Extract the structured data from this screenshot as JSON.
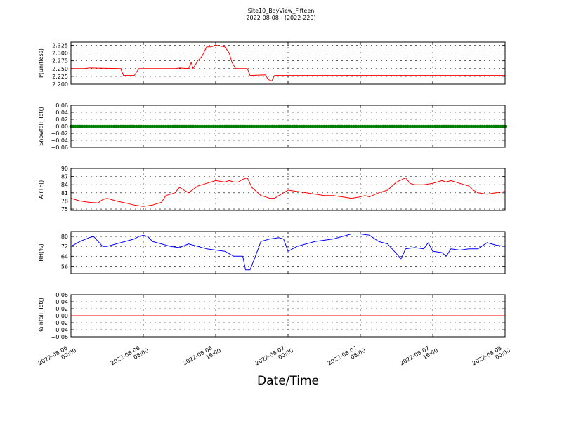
{
  "chart_data": {
    "type": "line",
    "title": "Site10_BayView_Fifteen",
    "subtitle": "2022-08-08 - (2022-220)",
    "xlabel": "Date/Time",
    "x_tick_labels": [
      [
        "2022-08-06",
        "00:00"
      ],
      [
        "2022-08-06",
        "08:00"
      ],
      [
        "2022-08-06",
        "16:00"
      ],
      [
        "2022-08-07",
        "00:00"
      ],
      [
        "2022-08-07",
        "08:00"
      ],
      [
        "2022-08-07",
        "16:00"
      ],
      [
        "2022-08-08",
        "00:00"
      ]
    ],
    "xlim_hours": [
      0,
      48
    ],
    "grid": true,
    "panels": [
      {
        "ylabel": "P(unitless)",
        "ylim": [
          2.2,
          2.335
        ],
        "yticks": [
          "2.200",
          "2.225",
          "2.250",
          "2.275",
          "2.300",
          "2.325"
        ],
        "color": "#ff0000",
        "marker": "line",
        "points": [
          [
            0,
            2.25
          ],
          [
            1.5,
            2.25
          ],
          [
            2,
            2.252
          ],
          [
            5.5,
            2.25
          ],
          [
            5.8,
            2.228
          ],
          [
            7,
            2.228
          ],
          [
            7.5,
            2.25
          ],
          [
            11.5,
            2.25
          ],
          [
            12,
            2.252
          ],
          [
            13,
            2.25
          ],
          [
            13.3,
            2.27
          ],
          [
            13.5,
            2.25
          ],
          [
            14,
            2.275
          ],
          [
            14.5,
            2.29
          ],
          [
            15,
            2.32
          ],
          [
            15.5,
            2.32
          ],
          [
            16,
            2.325
          ],
          [
            17,
            2.32
          ],
          [
            17.5,
            2.3
          ],
          [
            17.8,
            2.27
          ],
          [
            18.2,
            2.25
          ],
          [
            19.5,
            2.25
          ],
          [
            19.8,
            2.228
          ],
          [
            21.5,
            2.23
          ],
          [
            21.8,
            2.215
          ],
          [
            22.2,
            2.21
          ],
          [
            22.5,
            2.228
          ],
          [
            48,
            2.228
          ]
        ]
      },
      {
        "ylabel": "Snowfall_Tot()",
        "ylim": [
          -0.06,
          0.06
        ],
        "yticks": [
          "−0.06",
          "−0.04",
          "−0.02",
          "0.00",
          "0.02",
          "0.04",
          "0.06"
        ],
        "color": "#008000",
        "marker": "dots",
        "points": [
          [
            0,
            0
          ],
          [
            48,
            0
          ]
        ]
      },
      {
        "ylabel": "AirTF()",
        "ylim": [
          74.5,
          90
        ],
        "yticks": [
          "75",
          "78",
          "81",
          "84",
          "87",
          "90"
        ],
        "color": "#ff0000",
        "marker": "line",
        "points": [
          [
            0,
            79
          ],
          [
            1,
            78
          ],
          [
            2,
            77.5
          ],
          [
            3,
            77.3
          ],
          [
            3.5,
            78.5
          ],
          [
            4,
            79
          ],
          [
            5,
            78
          ],
          [
            6,
            77.3
          ],
          [
            7,
            76.5
          ],
          [
            8,
            76
          ],
          [
            9,
            76.5
          ],
          [
            10,
            77.5
          ],
          [
            10.5,
            80
          ],
          [
            11.5,
            81
          ],
          [
            12,
            83
          ],
          [
            12.5,
            82
          ],
          [
            13,
            81
          ],
          [
            14,
            83.5
          ],
          [
            15,
            84.5
          ],
          [
            16,
            85.5
          ],
          [
            17,
            85
          ],
          [
            17.5,
            85.5
          ],
          [
            18,
            85
          ],
          [
            18.5,
            85
          ],
          [
            19,
            86
          ],
          [
            19.5,
            86.5
          ],
          [
            20,
            83
          ],
          [
            21,
            80
          ],
          [
            22,
            79
          ],
          [
            22.5,
            79
          ],
          [
            23,
            80
          ],
          [
            24,
            82
          ],
          [
            25,
            81.5
          ],
          [
            26,
            81
          ],
          [
            27,
            80.5
          ],
          [
            28,
            80
          ],
          [
            29,
            80
          ],
          [
            30,
            79.5
          ],
          [
            31,
            79
          ],
          [
            32,
            79.5
          ],
          [
            32.5,
            80
          ],
          [
            33,
            79.5
          ],
          [
            34,
            81
          ],
          [
            35,
            82
          ],
          [
            36,
            85
          ],
          [
            37,
            86.5
          ],
          [
            37.5,
            84.5
          ],
          [
            38,
            84
          ],
          [
            39,
            84
          ],
          [
            40,
            84.5
          ],
          [
            40.5,
            85
          ],
          [
            41,
            85.5
          ],
          [
            41.5,
            85
          ],
          [
            42,
            85.5
          ],
          [
            43,
            84.5
          ],
          [
            44,
            83.5
          ],
          [
            44.5,
            82
          ],
          [
            45,
            81
          ],
          [
            46,
            80.5
          ],
          [
            47,
            81
          ],
          [
            48,
            81.5
          ]
        ]
      },
      {
        "ylabel": "RH(%)",
        "ylim": [
          50,
          84
        ],
        "yticks": [
          "56",
          "64",
          "72",
          "80"
        ],
        "color": "#0000ff",
        "marker": "line",
        "points": [
          [
            0,
            72
          ],
          [
            1,
            76
          ],
          [
            2,
            79
          ],
          [
            2.5,
            80
          ],
          [
            3,
            76
          ],
          [
            3.5,
            72
          ],
          [
            4,
            72
          ],
          [
            5,
            74
          ],
          [
            6,
            76
          ],
          [
            7,
            78
          ],
          [
            7.5,
            80
          ],
          [
            8,
            81
          ],
          [
            8.5,
            80
          ],
          [
            9,
            76
          ],
          [
            10,
            74
          ],
          [
            11,
            72
          ],
          [
            12,
            71
          ],
          [
            13,
            74
          ],
          [
            14,
            72
          ],
          [
            15,
            70
          ],
          [
            16,
            69
          ],
          [
            17,
            68
          ],
          [
            18,
            64
          ],
          [
            19,
            64
          ],
          [
            19.3,
            53
          ],
          [
            19.8,
            53
          ],
          [
            20.5,
            66
          ],
          [
            21,
            76
          ],
          [
            22,
            78
          ],
          [
            23,
            79
          ],
          [
            23.5,
            78
          ],
          [
            24,
            68
          ],
          [
            25,
            72
          ],
          [
            26,
            74
          ],
          [
            27,
            76
          ],
          [
            28,
            77
          ],
          [
            29,
            78
          ],
          [
            30,
            80
          ],
          [
            31,
            82
          ],
          [
            32,
            82
          ],
          [
            33,
            81
          ],
          [
            34,
            76
          ],
          [
            35,
            74
          ],
          [
            36,
            66
          ],
          [
            36.5,
            62
          ],
          [
            37,
            70
          ],
          [
            38,
            71
          ],
          [
            39,
            70
          ],
          [
            39.5,
            75
          ],
          [
            40,
            68
          ],
          [
            41,
            67
          ],
          [
            41.5,
            64
          ],
          [
            42,
            70
          ],
          [
            43,
            69
          ],
          [
            44,
            70
          ],
          [
            45,
            70
          ],
          [
            46,
            75
          ],
          [
            47,
            73
          ],
          [
            48,
            72
          ]
        ]
      },
      {
        "ylabel": "Rainfall_Tot()",
        "ylim": [
          -0.06,
          0.06
        ],
        "yticks": [
          "−0.06",
          "−0.04",
          "−0.02",
          "0.00",
          "0.02",
          "0.04",
          "0.06"
        ],
        "color": "#ff0000",
        "marker": "line",
        "points": [
          [
            0,
            0
          ],
          [
            48,
            0
          ]
        ]
      }
    ]
  }
}
